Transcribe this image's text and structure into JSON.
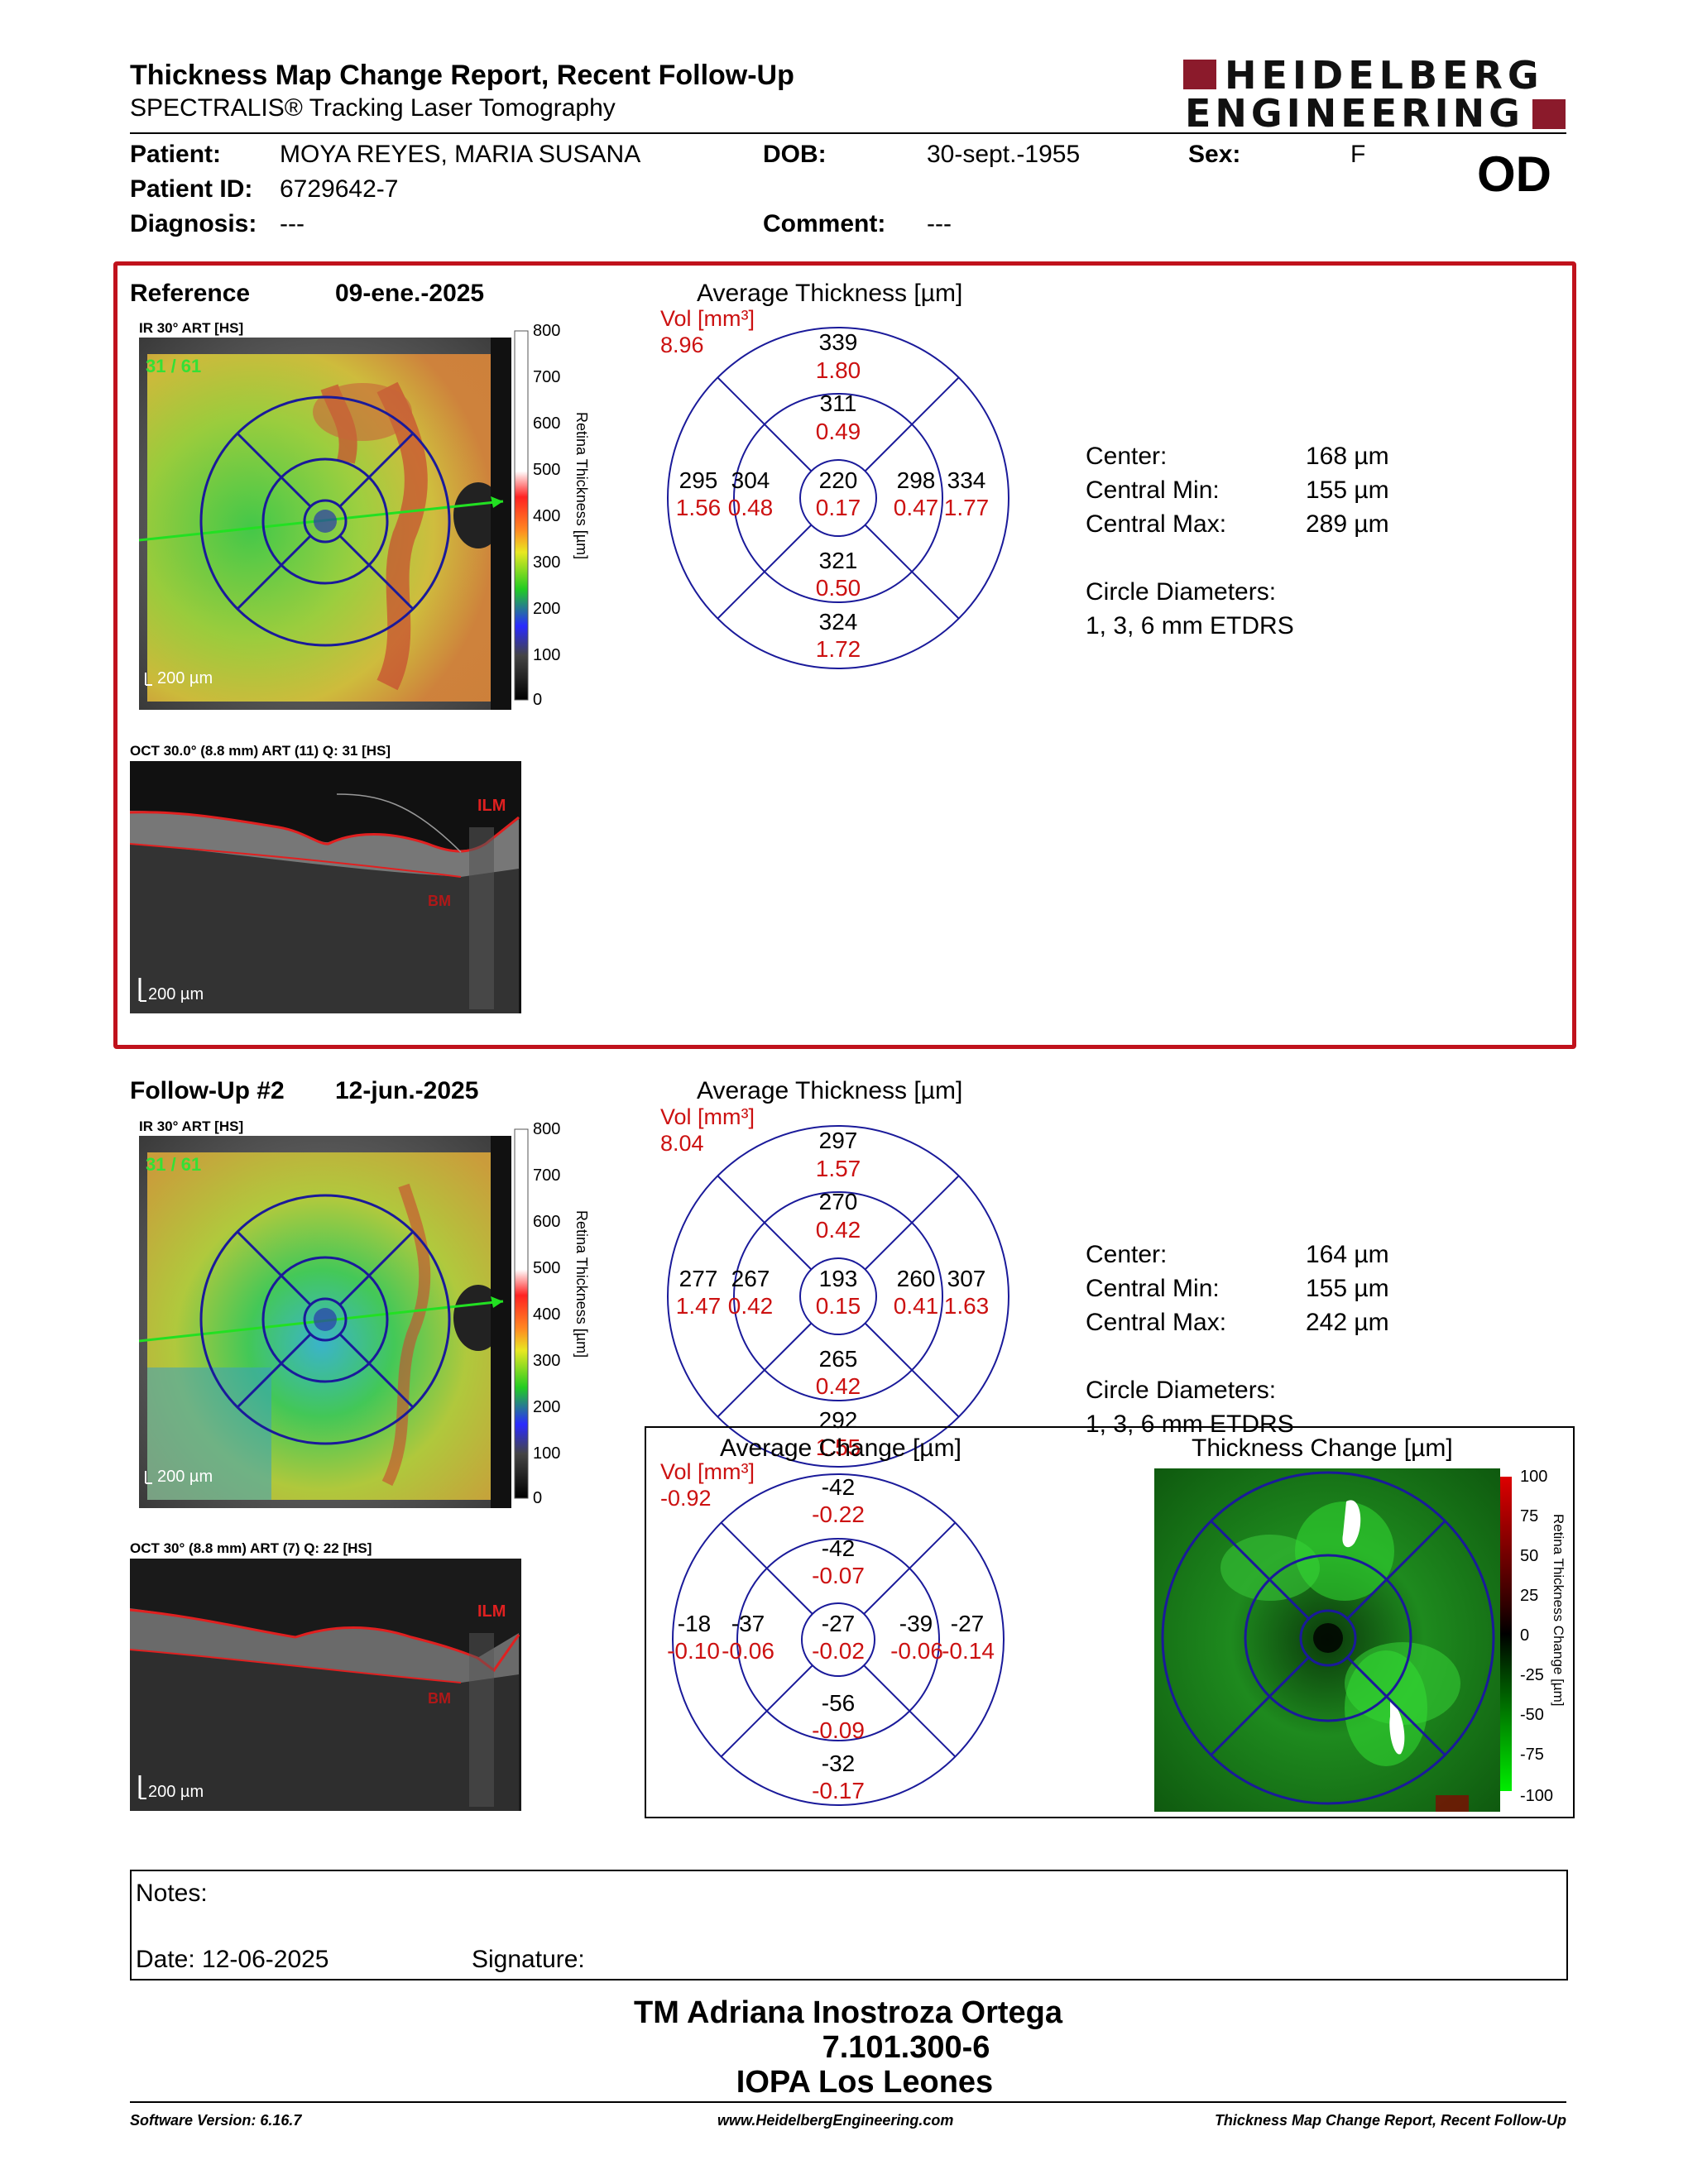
{
  "header": {
    "title": "Thickness Map Change Report, Recent Follow-Up",
    "subtitle": "SPECTRALIS® Tracking Laser Tomography",
    "logo_line1": "HEIDELBERG",
    "logo_line2": "ENGINEERING",
    "eye": "OD"
  },
  "patient": {
    "patient_label": "Patient:",
    "patient_name": "MOYA REYES, MARIA SUSANA",
    "dob_label": "DOB:",
    "dob": "30-sept.-1955",
    "sex_label": "Sex:",
    "sex": "F",
    "id_label": "Patient ID:",
    "id": "6729642-7",
    "diagnosis_label": "Diagnosis:",
    "diagnosis": "---",
    "comment_label": "Comment:",
    "comment": "---"
  },
  "reference": {
    "label": "Reference",
    "date": "09-ene.-2025",
    "ir_caption": "IR 30° ART [HS]",
    "frame": "31 / 61",
    "scale_ir": "200 µm",
    "oct_caption": "OCT 30.0° (8.8 mm) ART (11) Q: 31 [HS]",
    "scale_oct": "200 µm",
    "ilm": "ILM",
    "bm": "BM",
    "colorbar_title": "Retina Thickness [µm]",
    "colorbar_ticks": [
      "800",
      "700",
      "600",
      "500",
      "400",
      "300",
      "200",
      "100",
      "0"
    ],
    "avg_title": "Average Thickness [µm]",
    "vol_label": "Vol [mm³]",
    "vol_value": "8.96",
    "sectors": {
      "outer_sup": {
        "t": "339",
        "v": "1.80"
      },
      "inner_sup": {
        "t": "311",
        "v": "0.49"
      },
      "outer_temp": {
        "t": "295",
        "v": "1.56"
      },
      "inner_temp": {
        "t": "304",
        "v": "0.48"
      },
      "center": {
        "t": "220",
        "v": "0.17"
      },
      "inner_nasal": {
        "t": "298",
        "v": "0.47"
      },
      "outer_nasal": {
        "t": "334",
        "v": "1.77"
      },
      "inner_inf": {
        "t": "321",
        "v": "0.50"
      },
      "outer_inf": {
        "t": "324",
        "v": "1.72"
      }
    },
    "stats": {
      "center_label": "Center:",
      "center": "168 µm",
      "min_label": "Central Min:",
      "min": "155 µm",
      "max_label": "Central Max:",
      "max": "289 µm",
      "diam_label": "Circle Diameters:",
      "diam": "1, 3, 6 mm ETDRS"
    }
  },
  "followup": {
    "label": "Follow-Up #2",
    "date": "12-jun.-2025",
    "ir_caption": "IR 30° ART [HS]",
    "frame": "31 / 61",
    "scale_ir": "200 µm",
    "oct_caption": "OCT 30° (8.8 mm) ART (7) Q: 22 [HS]",
    "scale_oct": "200 µm",
    "ilm": "ILM",
    "bm": "BM",
    "colorbar_title": "Retina Thickness [µm]",
    "colorbar_ticks": [
      "800",
      "700",
      "600",
      "500",
      "400",
      "300",
      "200",
      "100",
      "0"
    ],
    "avg_title": "Average Thickness [µm]",
    "vol_label": "Vol [mm³]",
    "vol_value": "8.04",
    "sectors": {
      "outer_sup": {
        "t": "297",
        "v": "1.57"
      },
      "inner_sup": {
        "t": "270",
        "v": "0.42"
      },
      "outer_temp": {
        "t": "277",
        "v": "1.47"
      },
      "inner_temp": {
        "t": "267",
        "v": "0.42"
      },
      "center": {
        "t": "193",
        "v": "0.15"
      },
      "inner_nasal": {
        "t": "260",
        "v": "0.41"
      },
      "outer_nasal": {
        "t": "307",
        "v": "1.63"
      },
      "inner_inf": {
        "t": "265",
        "v": "0.42"
      },
      "outer_inf": {
        "t": "292",
        "v": "1.55"
      }
    },
    "stats": {
      "center_label": "Center:",
      "center": "164 µm",
      "min_label": "Central Min:",
      "min": "155 µm",
      "max_label": "Central Max:",
      "max": "242 µm",
      "diam_label": "Circle Diameters:",
      "diam": "1, 3, 6 mm ETDRS"
    }
  },
  "change": {
    "avg_title": "Average Change [µm]",
    "vol_label": "Vol [mm³]",
    "vol_value": "-0.92",
    "sectors": {
      "outer_sup": {
        "t": "-42",
        "v": "-0.22"
      },
      "inner_sup": {
        "t": "-42",
        "v": "-0.07"
      },
      "outer_temp": {
        "t": "-18",
        "v": "-0.10"
      },
      "inner_temp": {
        "t": "-37",
        "v": "-0.06"
      },
      "center": {
        "t": "-27",
        "v": "-0.02"
      },
      "inner_nasal": {
        "t": "-39",
        "v": "-0.06"
      },
      "outer_nasal": {
        "t": "-27",
        "v": "-0.14"
      },
      "inner_inf": {
        "t": "-56",
        "v": "-0.09"
      },
      "outer_inf": {
        "t": "-32",
        "v": "-0.17"
      }
    },
    "map_title": "Thickness Change [µm]",
    "colorbar_title": "Retina Thickness Change [µm]",
    "colorbar_ticks": [
      "100",
      "75",
      "50",
      "25",
      "0",
      "-25",
      "-50",
      "-75",
      "-100"
    ]
  },
  "notes": {
    "notes_label": "Notes:",
    "date_label": "Date: 12-06-2025",
    "signature_label": "Signature:"
  },
  "signature": {
    "name": "TM Adriana Inostroza Ortega",
    "id": "7.101.300-6",
    "org": "IOPA Los Leones"
  },
  "footer": {
    "software": "Software Version: 6.16.7",
    "url": "www.HeidelbergEngineering.com",
    "report": "Thickness Map Change Report, Recent Follow-Up"
  },
  "colors": {
    "panel_border": "#c0121c",
    "value_red": "#cc1111",
    "grid_blue": "#1a1a9a"
  }
}
